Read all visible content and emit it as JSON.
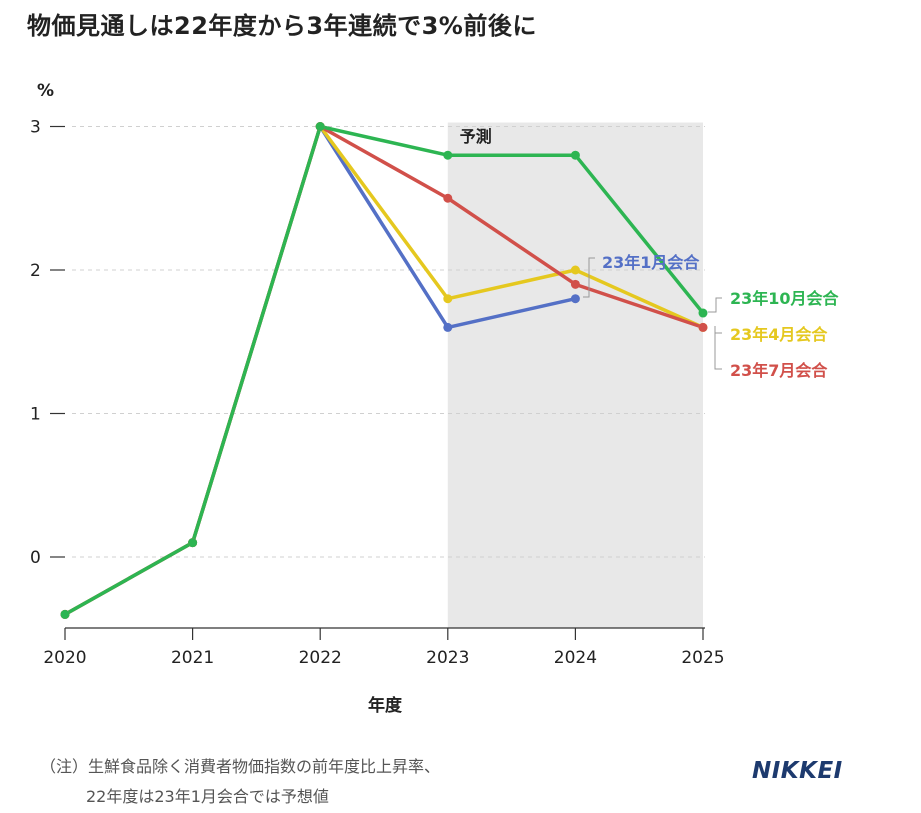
{
  "title": "物価見通しは22年度から3年連続で3%前後に",
  "note": {
    "line1": "（注）生鮮食品除く消費者物価指数の前年度比上昇率、",
    "line2": "22年度は23年1月会合では予想値"
  },
  "logo": "NIKKEI",
  "chart_data": {
    "type": "line",
    "x": [
      2020,
      2021,
      2022,
      2023,
      2024,
      2025
    ],
    "xlabel": "年度",
    "ylabel": "%",
    "ylim": [
      -0.5,
      3
    ],
    "yticks": [
      0,
      1,
      2,
      3
    ],
    "grid": true,
    "forecast_region": {
      "from": 2023,
      "to": 2025,
      "label": "予測"
    },
    "series": [
      {
        "name": "23年1月会合",
        "color": "#5470c6",
        "values": [
          -0.4,
          0.1,
          3.0,
          1.6,
          1.8,
          null
        ]
      },
      {
        "name": "23年4月会合",
        "color": "#e5c81f",
        "values": [
          -0.4,
          0.1,
          3.0,
          1.8,
          2.0,
          1.6
        ]
      },
      {
        "name": "23年7月会合",
        "color": "#d1504a",
        "values": [
          -0.4,
          0.1,
          3.0,
          2.5,
          1.9,
          1.6
        ]
      },
      {
        "name": "23年10月会合",
        "color": "#2db552",
        "values": [
          -0.4,
          0.1,
          3.0,
          2.8,
          2.8,
          1.7
        ]
      }
    ]
  }
}
